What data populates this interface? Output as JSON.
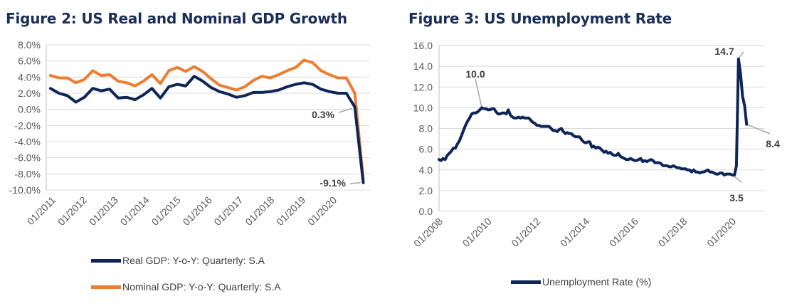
{
  "figures": [
    {
      "title": "Figure 2: US Real and Nominal GDP Growth",
      "legend": [
        "Real GDP: Y-o-Y: Quarterly: S.A",
        "Nominal GDP: Y-o-Y: Quarterly: S.A"
      ]
    },
    {
      "title": "Figure 3: US Unemployment Rate",
      "legend": [
        "Unemployment Rate (%)"
      ]
    }
  ],
  "chart_data": [
    {
      "type": "line",
      "title": "Figure 2: US Real and Nominal GDP Growth",
      "x": [
        "2011Q1",
        "2011Q2",
        "2011Q3",
        "2011Q4",
        "2012Q1",
        "2012Q2",
        "2012Q3",
        "2012Q4",
        "2013Q1",
        "2013Q2",
        "2013Q3",
        "2013Q4",
        "2014Q1",
        "2014Q2",
        "2014Q3",
        "2014Q4",
        "2015Q1",
        "2015Q2",
        "2015Q3",
        "2015Q4",
        "2016Q1",
        "2016Q2",
        "2016Q3",
        "2016Q4",
        "2017Q1",
        "2017Q2",
        "2017Q3",
        "2017Q4",
        "2018Q1",
        "2018Q2",
        "2018Q3",
        "2018Q4",
        "2019Q1",
        "2019Q2",
        "2019Q3",
        "2019Q4",
        "2020Q1",
        "2020Q2"
      ],
      "x_tick_labels": [
        "01/2011",
        "01/2012",
        "01/2013",
        "01/2014",
        "01/2015",
        "01/2016",
        "01/2017",
        "01/2018",
        "01/2019",
        "01/2020"
      ],
      "y_tick_labels": [
        "8.0%",
        "6.0%",
        "4.0%",
        "2.0%",
        "0.0%",
        "-2.0%",
        "-4.0%",
        "-6.0%",
        "-8.0%",
        "-10.0%"
      ],
      "ylim": [
        -10,
        8
      ],
      "grid": "horizontal",
      "legend_position": "bottom",
      "series": [
        {
          "name": "Real GDP: Y-o-Y: Quarterly: S.A",
          "color": "#0f2557",
          "values": [
            2.6,
            2.0,
            1.7,
            0.9,
            1.5,
            2.6,
            2.3,
            2.5,
            1.4,
            1.5,
            1.2,
            1.8,
            2.6,
            1.4,
            2.8,
            3.1,
            2.9,
            4.1,
            3.5,
            2.7,
            2.2,
            1.9,
            1.5,
            1.7,
            2.1,
            2.1,
            2.2,
            2.4,
            2.8,
            3.1,
            3.3,
            3.1,
            2.5,
            2.2,
            2.0,
            2.0,
            0.3,
            -9.1
          ]
        },
        {
          "name": "Nominal GDP: Y-o-Y: Quarterly: S.A",
          "color": "#ed7d31",
          "values": [
            4.2,
            3.9,
            3.9,
            3.3,
            3.7,
            4.8,
            4.2,
            4.3,
            3.5,
            3.3,
            2.9,
            3.5,
            4.3,
            3.2,
            4.8,
            5.2,
            4.7,
            5.3,
            4.7,
            3.8,
            3.0,
            2.7,
            2.4,
            2.8,
            3.6,
            4.1,
            3.9,
            4.3,
            4.8,
            5.2,
            6.1,
            5.8,
            4.8,
            4.3,
            3.9,
            3.9,
            2.0,
            -8.7
          ]
        }
      ],
      "annotations": [
        "0.3%",
        "-9.1%"
      ]
    },
    {
      "type": "line",
      "title": "Figure 3: US Unemployment Rate",
      "x_tick_labels": [
        "01/2008",
        "01/2010",
        "01/2012",
        "01/2014",
        "01/2016",
        "01/2018",
        "01/2020"
      ],
      "y_tick_labels": [
        "16.0",
        "14.0",
        "12.0",
        "10.0",
        "8.0",
        "6.0",
        "4.0",
        "2.0",
        "0.0"
      ],
      "ylim": [
        0,
        16
      ],
      "grid": "horizontal",
      "legend_position": "bottom",
      "series": [
        {
          "name": "Unemployment Rate (%)",
          "color": "#0f2557",
          "x": [
            "2008-01",
            "2008-02",
            "2008-03",
            "2008-04",
            "2008-05",
            "2008-06",
            "2008-07",
            "2008-08",
            "2008-09",
            "2008-10",
            "2008-11",
            "2008-12",
            "2009-01",
            "2009-02",
            "2009-03",
            "2009-04",
            "2009-05",
            "2009-06",
            "2009-07",
            "2009-08",
            "2009-09",
            "2009-10",
            "2009-11",
            "2009-12",
            "2010-01",
            "2010-02",
            "2010-03",
            "2010-04",
            "2010-05",
            "2010-06",
            "2010-07",
            "2010-08",
            "2010-09",
            "2010-10",
            "2010-11",
            "2010-12",
            "2011-01",
            "2011-02",
            "2011-03",
            "2011-04",
            "2011-05",
            "2011-06",
            "2011-07",
            "2011-08",
            "2011-09",
            "2011-10",
            "2011-11",
            "2011-12",
            "2012-01",
            "2012-02",
            "2012-03",
            "2012-04",
            "2012-05",
            "2012-06",
            "2012-07",
            "2012-08",
            "2012-09",
            "2012-10",
            "2012-11",
            "2012-12",
            "2013-01",
            "2013-02",
            "2013-03",
            "2013-04",
            "2013-05",
            "2013-06",
            "2013-07",
            "2013-08",
            "2013-09",
            "2013-10",
            "2013-11",
            "2013-12",
            "2014-01",
            "2014-02",
            "2014-03",
            "2014-04",
            "2014-05",
            "2014-06",
            "2014-07",
            "2014-08",
            "2014-09",
            "2014-10",
            "2014-11",
            "2014-12",
            "2015-01",
            "2015-02",
            "2015-03",
            "2015-04",
            "2015-05",
            "2015-06",
            "2015-07",
            "2015-08",
            "2015-09",
            "2015-10",
            "2015-11",
            "2015-12",
            "2016-01",
            "2016-02",
            "2016-03",
            "2016-04",
            "2016-05",
            "2016-06",
            "2016-07",
            "2016-08",
            "2016-09",
            "2016-10",
            "2016-11",
            "2016-12",
            "2017-01",
            "2017-02",
            "2017-03",
            "2017-04",
            "2017-05",
            "2017-06",
            "2017-07",
            "2017-08",
            "2017-09",
            "2017-10",
            "2017-11",
            "2017-12",
            "2018-01",
            "2018-02",
            "2018-03",
            "2018-04",
            "2018-05",
            "2018-06",
            "2018-07",
            "2018-08",
            "2018-09",
            "2018-10",
            "2018-11",
            "2018-12",
            "2019-01",
            "2019-02",
            "2019-03",
            "2019-04",
            "2019-05",
            "2019-06",
            "2019-07",
            "2019-08",
            "2019-09",
            "2019-10",
            "2019-11",
            "2019-12",
            "2020-01",
            "2020-02",
            "2020-03",
            "2020-04",
            "2020-05",
            "2020-06",
            "2020-07",
            "2020-08"
          ],
          "values": [
            5.0,
            4.9,
            5.1,
            5.0,
            5.4,
            5.6,
            5.8,
            6.1,
            6.1,
            6.5,
            6.8,
            7.3,
            7.8,
            8.3,
            8.7,
            9.0,
            9.4,
            9.5,
            9.5,
            9.6,
            9.8,
            10.0,
            9.9,
            9.9,
            9.8,
            9.8,
            9.9,
            9.9,
            9.6,
            9.4,
            9.4,
            9.5,
            9.5,
            9.4,
            9.8,
            9.3,
            9.1,
            9.0,
            9.0,
            9.1,
            9.0,
            9.1,
            9.0,
            9.0,
            9.0,
            8.8,
            8.6,
            8.5,
            8.3,
            8.3,
            8.2,
            8.2,
            8.2,
            8.2,
            8.2,
            8.0,
            7.8,
            7.8,
            7.7,
            7.9,
            8.0,
            7.7,
            7.5,
            7.6,
            7.5,
            7.5,
            7.3,
            7.2,
            7.2,
            7.2,
            6.9,
            6.7,
            6.6,
            6.7,
            6.7,
            6.2,
            6.3,
            6.1,
            6.2,
            6.1,
            5.9,
            5.7,
            5.8,
            5.6,
            5.7,
            5.5,
            5.4,
            5.4,
            5.6,
            5.3,
            5.2,
            5.1,
            5.0,
            5.0,
            5.1,
            5.0,
            4.9,
            4.9,
            5.0,
            5.1,
            4.8,
            4.9,
            4.8,
            4.9,
            5.0,
            4.9,
            4.7,
            4.7,
            4.7,
            4.6,
            4.4,
            4.4,
            4.4,
            4.3,
            4.3,
            4.4,
            4.3,
            4.2,
            4.2,
            4.1,
            4.1,
            4.1,
            4.0,
            4.0,
            3.8,
            4.0,
            3.8,
            3.8,
            3.7,
            3.8,
            3.8,
            3.9,
            4.0,
            3.8,
            3.8,
            3.7,
            3.6,
            3.6,
            3.7,
            3.7,
            3.5,
            3.6,
            3.6,
            3.6,
            3.5,
            3.5,
            4.4,
            14.7,
            13.3,
            11.1,
            10.2,
            8.4
          ]
        }
      ],
      "annotations": [
        "10.0",
        "14.7",
        "3.5",
        "8.4"
      ]
    }
  ]
}
